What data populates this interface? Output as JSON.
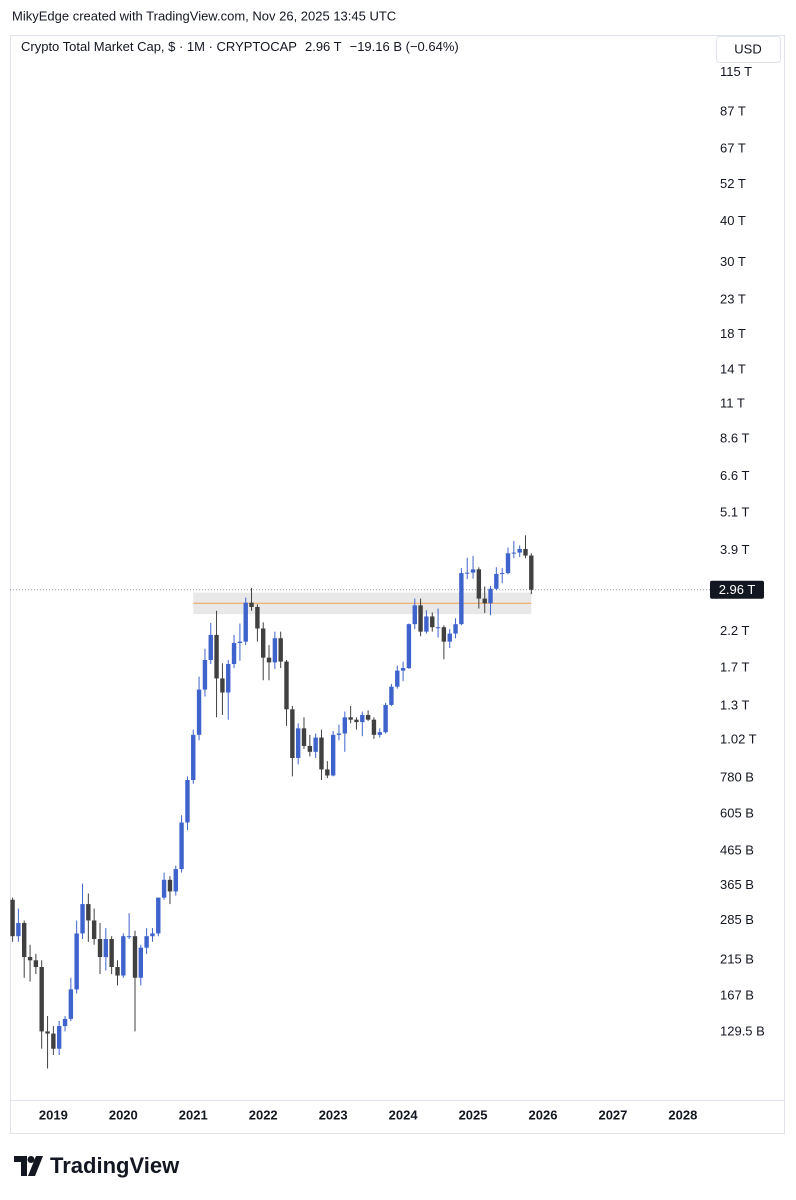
{
  "attribution": "MikyEdge created with TradingView.com, Nov 26, 2025 13:45 UTC",
  "chart_data": {
    "type": "candlestick",
    "title": "Crypto Total Market Cap, $ · 1M · CRYPTOCAP",
    "price_label": "2.96 T",
    "change_label": "−19.16 B (−0.64%)",
    "currency": "USD",
    "log_scale": true,
    "up_color": "#3f63cc",
    "down_color": "#404040",
    "xlim": [
      2018.38,
      2029.46
    ],
    "xticks": [
      2019,
      2020,
      2021,
      2022,
      2023,
      2024,
      2025,
      2026,
      2027,
      2028
    ],
    "ylim": [
      80,
      150000
    ],
    "yticks": [
      {
        "value": 115000,
        "label": "115 T"
      },
      {
        "value": 87000,
        "label": "87 T"
      },
      {
        "value": 67000,
        "label": "67 T"
      },
      {
        "value": 52000,
        "label": "52 T"
      },
      {
        "value": 40000,
        "label": "40 T"
      },
      {
        "value": 30000,
        "label": "30 T"
      },
      {
        "value": 23000,
        "label": "23 T"
      },
      {
        "value": 18000,
        "label": "18 T"
      },
      {
        "value": 14000,
        "label": "14 T"
      },
      {
        "value": 11000,
        "label": "11 T"
      },
      {
        "value": 8600,
        "label": "8.6 T"
      },
      {
        "value": 6600,
        "label": "6.6 T"
      },
      {
        "value": 5100,
        "label": "5.1 T"
      },
      {
        "value": 3900,
        "label": "3.9 T"
      },
      {
        "value": 2200,
        "label": "2.2 T"
      },
      {
        "value": 1700,
        "label": "1.7 T"
      },
      {
        "value": 1300,
        "label": "1.3 T"
      },
      {
        "value": 1020,
        "label": "1.02 T"
      },
      {
        "value": 780,
        "label": "780 B"
      },
      {
        "value": 605,
        "label": "605 B"
      },
      {
        "value": 465,
        "label": "465 B"
      },
      {
        "value": 365,
        "label": "365 B"
      },
      {
        "value": 285,
        "label": "285 B"
      },
      {
        "value": 215,
        "label": "215 B"
      },
      {
        "value": 167,
        "label": "167 B"
      },
      {
        "value": 129.5,
        "label": "129.5 B"
      }
    ],
    "last_price": 2960,
    "last_price_label": "2.96 T",
    "zone": {
      "x_start": 2021.0,
      "x_end": 2025.833,
      "low": 2490,
      "high": 2900,
      "line": 2690,
      "color": "#e4e4e4",
      "line_color": "#f0a050"
    },
    "x": [
      2018.417,
      2018.5,
      2018.583,
      2018.667,
      2018.75,
      2018.833,
      2018.917,
      2019.0,
      2019.083,
      2019.167,
      2019.25,
      2019.333,
      2019.417,
      2019.5,
      2019.583,
      2019.667,
      2019.75,
      2019.833,
      2019.917,
      2020.0,
      2020.083,
      2020.167,
      2020.25,
      2020.333,
      2020.417,
      2020.5,
      2020.583,
      2020.667,
      2020.75,
      2020.833,
      2020.917,
      2021.0,
      2021.083,
      2021.167,
      2021.25,
      2021.333,
      2021.417,
      2021.5,
      2021.583,
      2021.667,
      2021.75,
      2021.833,
      2021.917,
      2022.0,
      2022.083,
      2022.167,
      2022.25,
      2022.333,
      2022.417,
      2022.5,
      2022.583,
      2022.667,
      2022.75,
      2022.833,
      2022.917,
      2023.0,
      2023.083,
      2023.167,
      2023.25,
      2023.333,
      2023.417,
      2023.5,
      2023.583,
      2023.667,
      2023.75,
      2023.833,
      2023.917,
      2024.0,
      2024.083,
      2024.167,
      2024.25,
      2024.333,
      2024.417,
      2024.5,
      2024.583,
      2024.667,
      2024.75,
      2024.833,
      2024.917,
      2025.0,
      2025.083,
      2025.167,
      2025.25,
      2025.333,
      2025.417,
      2025.5,
      2025.583,
      2025.667,
      2025.75,
      2025.833
    ],
    "open": [
      330,
      255,
      280,
      220,
      215,
      205,
      130,
      128,
      115,
      135,
      142,
      175,
      260,
      320,
      285,
      250,
      220,
      250,
      205,
      193,
      255,
      255,
      190,
      235,
      255,
      260,
      335,
      380,
      350,
      410,
      570,
      770,
      1060,
      1460,
      1800,
      2150,
      1580,
      1430,
      1750,
      2030,
      2050,
      2700,
      2620,
      2250,
      1830,
      1770,
      2100,
      1780,
      1270,
      900,
      1110,
      980,
      940,
      1040,
      830,
      795,
      1060,
      1070,
      1200,
      1180,
      1160,
      1220,
      1180,
      1060,
      1080,
      1310,
      1490,
      1670,
      1700,
      2320,
      2650,
      2200,
      2450,
      2270,
      2270,
      2050,
      2170,
      2320,
      3330,
      3340,
      3420,
      2780,
      2690,
      2980,
      3310,
      3330,
      3830,
      3850,
      3950,
      3770
    ],
    "high": [
      335,
      310,
      285,
      240,
      225,
      215,
      145,
      135,
      140,
      145,
      190,
      285,
      370,
      345,
      310,
      280,
      270,
      255,
      215,
      260,
      300,
      265,
      240,
      270,
      270,
      335,
      400,
      390,
      420,
      600,
      790,
      1100,
      1600,
      1950,
      2340,
      2550,
      1760,
      1800,
      2150,
      2330,
      2800,
      3000,
      2670,
      2350,
      2000,
      2200,
      2200,
      1800,
      1300,
      1150,
      1200,
      1060,
      1070,
      1100,
      880,
      1090,
      1140,
      1250,
      1300,
      1200,
      1250,
      1260,
      1200,
      1110,
      1330,
      1520,
      1730,
      1780,
      2330,
      2780,
      2780,
      2560,
      2520,
      2590,
      2300,
      2240,
      2420,
      3450,
      3710,
      3760,
      3470,
      3030,
      3040,
      3470,
      3450,
      3990,
      4180,
      4050,
      4350,
      3830
    ],
    "low": [
      245,
      245,
      190,
      185,
      195,
      115,
      100,
      110,
      110,
      130,
      140,
      170,
      250,
      245,
      240,
      195,
      200,
      195,
      180,
      190,
      250,
      130,
      180,
      225,
      245,
      255,
      330,
      320,
      340,
      400,
      540,
      750,
      1020,
      1390,
      1750,
      1200,
      1220,
      1180,
      1700,
      1790,
      2000,
      2550,
      2050,
      1560,
      1560,
      1690,
      1700,
      1130,
      790,
      860,
      960,
      910,
      900,
      770,
      780,
      790,
      1020,
      940,
      1150,
      1100,
      1050,
      1170,
      1030,
      1040,
      1070,
      1300,
      1470,
      1550,
      1690,
      2240,
      2130,
      2170,
      2200,
      2110,
      1810,
      1960,
      2100,
      2300,
      3190,
      3200,
      2590,
      2510,
      2470,
      2950,
      3100,
      3300,
      3700,
      3730,
      3700,
      2870
    ],
    "close": [
      255,
      280,
      220,
      215,
      205,
      130,
      128,
      115,
      135,
      142,
      175,
      260,
      320,
      285,
      250,
      220,
      250,
      205,
      193,
      255,
      255,
      190,
      235,
      255,
      260,
      335,
      380,
      350,
      410,
      570,
      770,
      1060,
      1460,
      1800,
      2150,
      1580,
      1430,
      1750,
      2030,
      2050,
      2700,
      2620,
      2250,
      1830,
      1770,
      2100,
      1780,
      1270,
      900,
      1110,
      980,
      940,
      1040,
      830,
      795,
      1060,
      1070,
      1200,
      1180,
      1160,
      1220,
      1180,
      1060,
      1080,
      1310,
      1490,
      1670,
      1700,
      2320,
      2650,
      2200,
      2450,
      2270,
      2270,
      2050,
      2170,
      2320,
      3330,
      3340,
      3420,
      2780,
      2690,
      2980,
      3310,
      3330,
      3830,
      3850,
      3950,
      3770,
      2960
    ]
  },
  "footer": {
    "brand": "TradingView"
  }
}
